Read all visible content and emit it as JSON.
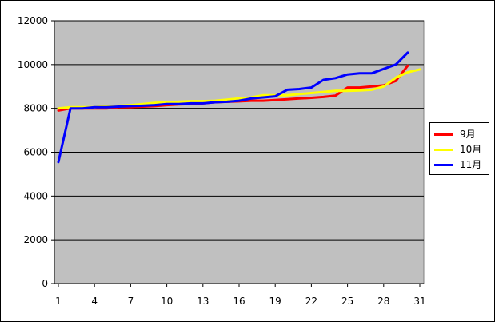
{
  "chart_data": {
    "type": "line",
    "x_tick_labels": [
      "1",
      "4",
      "7",
      "10",
      "13",
      "16",
      "19",
      "22",
      "25",
      "28",
      "31"
    ],
    "y_tick_labels": [
      "0",
      "2000",
      "4000",
      "6000",
      "8000",
      "10000",
      "12000"
    ],
    "x": [
      1,
      2,
      3,
      4,
      5,
      6,
      7,
      8,
      9,
      10,
      11,
      12,
      13,
      14,
      15,
      16,
      17,
      18,
      19,
      20,
      21,
      22,
      23,
      24,
      25,
      26,
      27,
      28,
      29,
      30,
      31
    ],
    "xlim": [
      1,
      31
    ],
    "ylim": [
      0,
      12000
    ],
    "grid": "horizontal",
    "legend_position": "right",
    "series": [
      {
        "name": "9月",
        "color": "#ff0000",
        "values": [
          7900,
          8000,
          8000,
          8000,
          8000,
          8050,
          8050,
          8080,
          8100,
          8150,
          8180,
          8200,
          8230,
          8280,
          8300,
          8320,
          8350,
          8350,
          8380,
          8420,
          8450,
          8480,
          8520,
          8580,
          8950,
          8950,
          9000,
          9050,
          9250,
          9950,
          null
        ]
      },
      {
        "name": "10月",
        "color": "#ffff00",
        "values": [
          8000,
          8050,
          8050,
          8050,
          8100,
          8120,
          8150,
          8200,
          8250,
          8280,
          8300,
          8330,
          8330,
          8350,
          8400,
          8450,
          8500,
          8600,
          8600,
          8600,
          8650,
          8700,
          8750,
          8800,
          8800,
          8820,
          8850,
          9000,
          9400,
          9650,
          9780
        ]
      },
      {
        "name": "11月",
        "color": "#0000ff",
        "values": [
          5550,
          8000,
          8000,
          8050,
          8050,
          8080,
          8100,
          8120,
          8150,
          8200,
          8200,
          8230,
          8230,
          8280,
          8300,
          8350,
          8450,
          8500,
          8550,
          8850,
          8880,
          8950,
          9300,
          9380,
          9550,
          9600,
          9600,
          9800,
          10000,
          10550,
          null
        ]
      }
    ]
  }
}
